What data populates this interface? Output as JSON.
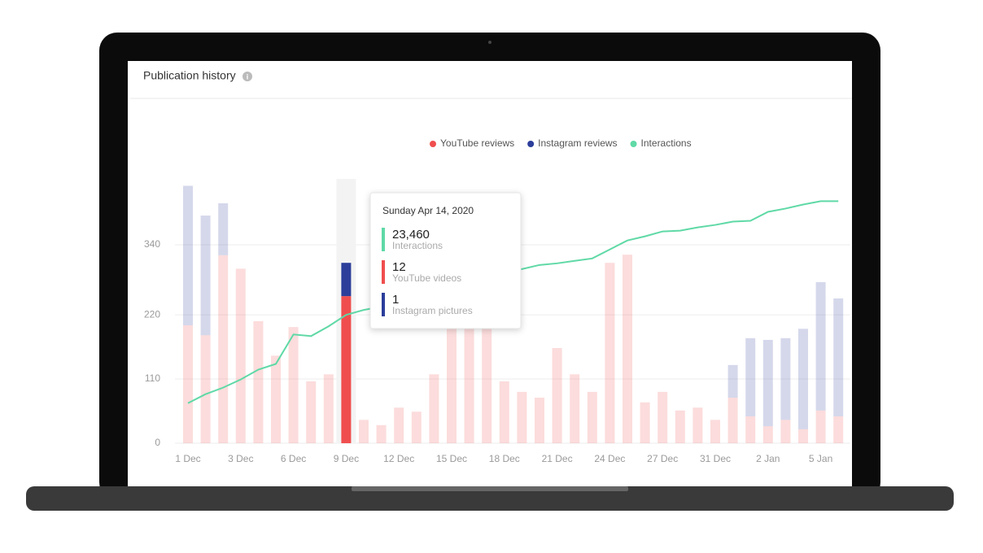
{
  "chart_data": {
    "type": "bar",
    "title": "Publication history",
    "categories": [
      "1 Dec",
      null,
      null,
      "3 Dec",
      null,
      null,
      "6 Dec",
      null,
      null,
      "9 Dec",
      null,
      null,
      "12 Dec",
      null,
      null,
      "15 Dec",
      null,
      null,
      "18 Dec",
      null,
      null,
      "21 Dec",
      null,
      null,
      "24 Dec",
      null,
      null,
      "27 Dec",
      null,
      null,
      "31 Dec",
      null,
      null,
      "2 Jan",
      null,
      null,
      "5 Jan",
      null
    ],
    "series": [
      {
        "name": "YouTube reviews",
        "color": "#f04e4e",
        "values": [
          202,
          185,
          322,
          299,
          209,
          150,
          199,
          106,
          118,
          252,
          40,
          31,
          61,
          54,
          118,
          199,
          199,
          199,
          106,
          88,
          78,
          163,
          118,
          88,
          309,
          323,
          70,
          88,
          56,
          61,
          40,
          78,
          46,
          29,
          40,
          24,
          56,
          46
        ]
      },
      {
        "name": "Instagram reviews",
        "color": "#2c3e9a",
        "values": [
          239,
          205,
          89,
          0,
          0,
          0,
          0,
          0,
          0,
          57,
          0,
          0,
          0,
          0,
          0,
          0,
          0,
          0,
          0,
          0,
          0,
          0,
          0,
          0,
          0,
          0,
          0,
          0,
          0,
          0,
          0,
          56,
          134,
          148,
          140,
          172,
          220,
          202
        ]
      },
      {
        "name": "Interactions",
        "color": "#5fd9a6",
        "type": "line",
        "axis": "y2",
        "values": [
          7320,
          8960,
          10160,
          11650,
          13450,
          14490,
          19870,
          19570,
          21360,
          23460,
          24350,
          24950,
          26150,
          27340,
          28390,
          29140,
          30180,
          30920,
          31220,
          31820,
          32570,
          32870,
          33320,
          33760,
          35410,
          37050,
          37800,
          38700,
          38840,
          39440,
          39890,
          40490,
          40640,
          42280,
          42880,
          43620,
          44220,
          44220
        ]
      }
    ],
    "ylim": [
      0,
      450
    ],
    "yticks": [
      0,
      110,
      220,
      340
    ],
    "y2lim": [
      0,
      48000
    ],
    "grid": true,
    "stacked": true,
    "highlight": 9,
    "tooltip": {
      "title": "Sunday Apr 14, 2020",
      "items": [
        {
          "value": "23,460",
          "label": "Interactions"
        },
        {
          "value": "12",
          "label": "YouTube videos"
        },
        {
          "value": "1",
          "label": "Instagram pictures"
        }
      ]
    }
  }
}
